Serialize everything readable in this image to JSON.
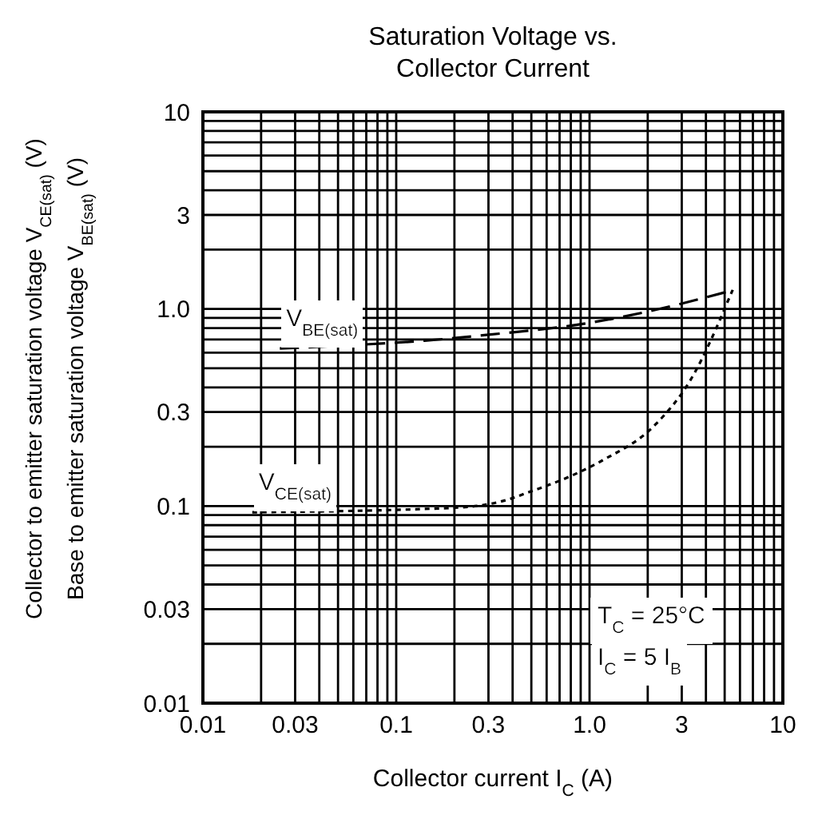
{
  "chart_data": {
    "type": "line",
    "title": "Saturation Voltage vs.\nCollector Current",
    "xlabel": "Collector current I$_{C}$ (A)",
    "ylabel": "Collector to emitter saturation voltage V$_{CE(sat)}$ (V)\nBase to emitter saturation voltage V$_{BE(sat)}$ (V)",
    "annotations": [
      "T$_{C}$ = 25°C",
      "I$_{C}$ = 5 I$_{B}$"
    ],
    "log": "xy",
    "grid": true,
    "legend": false,
    "xlim": [
      0.01,
      10
    ],
    "ylim": [
      0.01,
      10
    ],
    "xticks": [
      0.01,
      {
        "value": 0.02,
        "label": null
      },
      0.03,
      {
        "value": 0.04,
        "label": null
      },
      {
        "value": 0.05,
        "label": null
      },
      {
        "value": 0.06,
        "label": null
      },
      {
        "value": 0.07,
        "label": null
      },
      {
        "value": 0.08,
        "label": null
      },
      {
        "value": 0.09,
        "label": null
      },
      0.1,
      {
        "value": 0.2,
        "label": null
      },
      0.3,
      {
        "value": 0.4,
        "label": null
      },
      {
        "value": 0.5,
        "label": null
      },
      {
        "value": 0.6,
        "label": null
      },
      {
        "value": 0.7,
        "label": null
      },
      {
        "value": 0.8,
        "label": null
      },
      {
        "value": 0.9,
        "label": null
      },
      {
        "value": 1,
        "label": "1.0"
      },
      {
        "value": 2,
        "label": null
      },
      3,
      {
        "value": 4,
        "label": null
      },
      {
        "value": 5,
        "label": null
      },
      {
        "value": 6,
        "label": null
      },
      {
        "value": 7,
        "label": null
      },
      {
        "value": 8,
        "label": null
      },
      {
        "value": 9,
        "label": null
      },
      10
    ],
    "yticks": [
      0.01,
      {
        "value": 0.02,
        "label": null
      },
      0.03,
      {
        "value": 0.04,
        "label": null
      },
      {
        "value": 0.05,
        "label": null
      },
      {
        "value": 0.06,
        "label": null
      },
      {
        "value": 0.07,
        "label": null
      },
      {
        "value": 0.08,
        "label": null
      },
      {
        "value": 0.09,
        "label": null
      },
      0.1,
      {
        "value": 0.2,
        "label": null
      },
      0.3,
      {
        "value": 0.4,
        "label": null
      },
      {
        "value": 0.5,
        "label": null
      },
      {
        "value": 0.6,
        "label": null
      },
      {
        "value": 0.7,
        "label": null
      },
      {
        "value": 0.8,
        "label": null
      },
      {
        "value": 0.9,
        "label": null
      },
      {
        "value": 1,
        "label": "1.0"
      },
      {
        "value": 2,
        "label": null
      },
      3,
      {
        "value": 4,
        "label": null
      },
      {
        "value": 5,
        "label": null
      },
      {
        "value": 6,
        "label": null
      },
      {
        "value": 7,
        "label": null
      },
      {
        "value": 8,
        "label": null
      },
      {
        "value": 9,
        "label": null
      },
      10
    ],
    "series": [
      {
        "name": "V$_{BE(sat)}$",
        "color": "#000000",
        "line_style": "dashed",
        "x": [
          0.025,
          0.05,
          0.14,
          0.3,
          1.0,
          2.0,
          5.6
        ],
        "values": [
          0.63,
          0.65,
          0.69,
          0.74,
          0.85,
          0.97,
          1.25
        ]
      },
      {
        "name": "V$_{CE(sat)}$",
        "color": "#000000",
        "line_style": "dotted",
        "x": [
          0.018,
          0.2,
          0.38,
          0.49,
          0.8,
          1.16,
          2.2,
          3.3,
          5.5
        ],
        "values": [
          0.093,
          0.098,
          0.108,
          0.118,
          0.142,
          0.17,
          0.26,
          0.43,
          1.25
        ]
      }
    ]
  }
}
